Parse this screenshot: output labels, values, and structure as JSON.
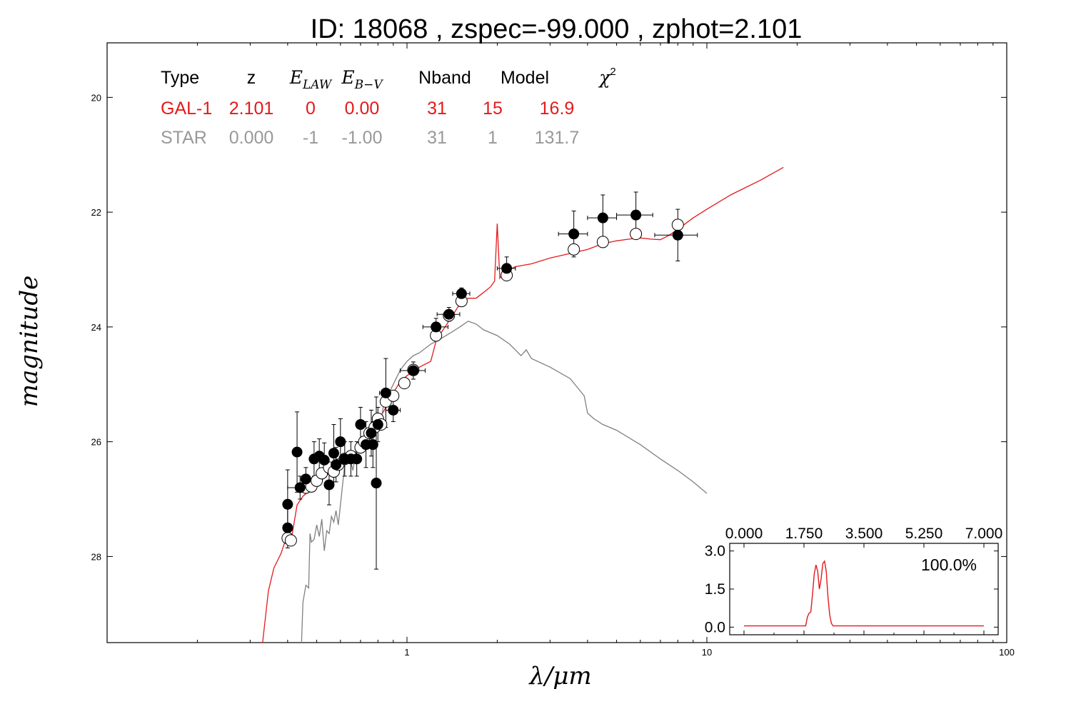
{
  "title": "ID:  18068 , zspec=-99.000 , zphot=2.101",
  "chart_data": [
    {
      "type": "scatter",
      "xlabel": "λ/μm",
      "ylabel": "magnitude",
      "xscale": "log",
      "xlim": [
        0.1,
        100
      ],
      "ylim": [
        29.5,
        19.05
      ],
      "y_inverted": true,
      "xticks": [
        "1",
        "10",
        "100"
      ],
      "yticks": [
        "20",
        "22",
        "24",
        "26",
        "28"
      ],
      "colors": {
        "galaxy": "#e31a1c",
        "star": "#808080",
        "observed": "#000000"
      },
      "table": {
        "headers": [
          "Type",
          "z",
          "E_LAW",
          "E_B−V",
          "Nband",
          "Model",
          "χ²"
        ],
        "rows": [
          {
            "color": "#e31a1c",
            "cells": [
              "GAL-1",
              "2.101",
              "0",
              "0.00",
              "31",
              "15",
              "16.9"
            ]
          },
          {
            "color": "#999999",
            "cells": [
              "STAR",
              "0.000",
              "-1",
              "-1.00",
              "31",
              "1",
              "131.7"
            ]
          }
        ]
      },
      "series": [
        {
          "kind": "line",
          "color": "#e31a1c",
          "points": [
            [
              0.33,
              29.5
            ],
            [
              0.345,
              28.6
            ],
            [
              0.36,
              28.2
            ],
            [
              0.38,
              27.95
            ],
            [
              0.4,
              27.6
            ],
            [
              0.41,
              27.75
            ],
            [
              0.43,
              27.1
            ],
            [
              0.45,
              26.95
            ],
            [
              0.5,
              26.75
            ],
            [
              0.55,
              26.55
            ],
            [
              0.6,
              26.4
            ],
            [
              0.65,
              26.25
            ],
            [
              0.7,
              26.1
            ],
            [
              0.75,
              25.9
            ],
            [
              0.8,
              25.65
            ],
            [
              0.85,
              25.4
            ],
            [
              0.9,
              25.15
            ],
            [
              0.95,
              24.95
            ],
            [
              1.0,
              24.85
            ],
            [
              1.1,
              24.7
            ],
            [
              1.2,
              24.6
            ],
            [
              1.25,
              24.25
            ],
            [
              1.3,
              24.1
            ],
            [
              1.4,
              23.85
            ],
            [
              1.5,
              23.6
            ],
            [
              1.6,
              23.5
            ],
            [
              1.7,
              23.5
            ],
            [
              1.8,
              23.4
            ],
            [
              1.9,
              23.3
            ],
            [
              1.96,
              23.2
            ],
            [
              2.0,
              22.2
            ],
            [
              2.04,
              23.15
            ],
            [
              2.1,
              23.05
            ],
            [
              2.3,
              22.95
            ],
            [
              2.6,
              22.9
            ],
            [
              3.0,
              22.8
            ],
            [
              3.5,
              22.72
            ],
            [
              4.0,
              22.65
            ],
            [
              4.5,
              22.55
            ],
            [
              5.0,
              22.5
            ],
            [
              5.5,
              22.47
            ],
            [
              6.0,
              22.45
            ],
            [
              6.5,
              22.47
            ],
            [
              7.0,
              22.48
            ],
            [
              7.5,
              22.4
            ],
            [
              8.0,
              22.3
            ],
            [
              9.0,
              22.1
            ],
            [
              10.0,
              21.95
            ],
            [
              12.0,
              21.7
            ],
            [
              15.0,
              21.45
            ],
            [
              18.0,
              21.22
            ]
          ]
        },
        {
          "kind": "line",
          "color": "#808080",
          "points": [
            [
              0.445,
              29.5
            ],
            [
              0.45,
              28.8
            ],
            [
              0.46,
              28.5
            ],
            [
              0.47,
              28.55
            ],
            [
              0.475,
              27.6
            ],
            [
              0.48,
              27.75
            ],
            [
              0.49,
              27.7
            ],
            [
              0.5,
              27.45
            ],
            [
              0.51,
              27.65
            ],
            [
              0.52,
              27.35
            ],
            [
              0.53,
              27.9
            ],
            [
              0.54,
              27.55
            ],
            [
              0.55,
              27.6
            ],
            [
              0.56,
              27.3
            ],
            [
              0.57,
              27.4
            ],
            [
              0.58,
              27.2
            ],
            [
              0.59,
              27.45
            ],
            [
              0.6,
              27.1
            ],
            [
              0.62,
              26.4
            ],
            [
              0.64,
              26.2
            ],
            [
              0.66,
              26.5
            ],
            [
              0.68,
              26.1
            ],
            [
              0.7,
              26.2
            ],
            [
              0.72,
              25.9
            ],
            [
              0.74,
              26.0
            ],
            [
              0.76,
              25.7
            ],
            [
              0.78,
              25.8
            ],
            [
              0.8,
              25.5
            ],
            [
              0.82,
              25.6
            ],
            [
              0.84,
              25.3
            ],
            [
              0.86,
              25.35
            ],
            [
              0.88,
              25.1
            ],
            [
              0.9,
              25.0
            ],
            [
              0.95,
              24.75
            ],
            [
              1.0,
              24.6
            ],
            [
              1.05,
              24.5
            ],
            [
              1.1,
              24.45
            ],
            [
              1.2,
              24.3
            ],
            [
              1.3,
              24.2
            ],
            [
              1.4,
              24.1
            ],
            [
              1.5,
              24.0
            ],
            [
              1.6,
              23.9
            ],
            [
              1.7,
              23.95
            ],
            [
              1.8,
              24.05
            ],
            [
              2.0,
              24.15
            ],
            [
              2.2,
              24.3
            ],
            [
              2.4,
              24.5
            ],
            [
              2.5,
              24.4
            ],
            [
              2.6,
              24.55
            ],
            [
              3.0,
              24.7
            ],
            [
              3.5,
              24.9
            ],
            [
              3.9,
              25.2
            ],
            [
              4.0,
              25.5
            ],
            [
              4.2,
              25.6
            ],
            [
              4.5,
              25.7
            ],
            [
              5.0,
              25.8
            ],
            [
              6.0,
              26.05
            ],
            [
              7.0,
              26.3
            ],
            [
              8.0,
              26.5
            ],
            [
              9.0,
              26.7
            ],
            [
              10.0,
              26.9
            ]
          ]
        },
        {
          "kind": "points_open",
          "color": "#000000",
          "points": [
            [
              0.4,
              27.68
            ],
            [
              0.41,
              27.72
            ],
            [
              0.46,
              26.8
            ],
            [
              0.48,
              26.78
            ],
            [
              0.5,
              26.68
            ],
            [
              0.52,
              26.55
            ],
            [
              0.55,
              26.45
            ],
            [
              0.57,
              26.52
            ],
            [
              0.59,
              26.4
            ],
            [
              0.62,
              26.3
            ],
            [
              0.65,
              26.25
            ],
            [
              0.7,
              26.1
            ],
            [
              0.72,
              26.0
            ],
            [
              0.75,
              25.85
            ],
            [
              0.78,
              25.75
            ],
            [
              0.8,
              25.6
            ],
            [
              0.82,
              25.7
            ],
            [
              0.85,
              25.3
            ],
            [
              0.9,
              25.2
            ],
            [
              0.98,
              24.98
            ],
            [
              1.05,
              24.75
            ],
            [
              1.25,
              24.15
            ],
            [
              1.38,
              23.8
            ],
            [
              1.52,
              23.55
            ],
            [
              2.15,
              23.1
            ],
            [
              3.6,
              22.65
            ],
            [
              4.5,
              22.52
            ],
            [
              5.8,
              22.38
            ],
            [
              8.0,
              22.22
            ]
          ]
        },
        {
          "kind": "points_filled_errorbars",
          "color": "#000000",
          "points": [
            {
              "x": 0.4,
              "y": 27.09,
              "dy": 0.6
            },
            {
              "x": 0.4,
              "y": 27.5,
              "dy": 0.35
            },
            {
              "x": 0.43,
              "y": 26.18,
              "dy": 0.7
            },
            {
              "x": 0.44,
              "y": 26.8,
              "dy": 0.2,
              "dx": 0.04
            },
            {
              "x": 0.46,
              "y": 26.65,
              "dy": 0.2
            },
            {
              "x": 0.49,
              "y": 26.3,
              "dy": 0.3
            },
            {
              "x": 0.51,
              "y": 26.25,
              "dy": 0.3
            },
            {
              "x": 0.53,
              "y": 26.32,
              "dy": 0.3
            },
            {
              "x": 0.55,
              "y": 26.75,
              "dy": 0.35
            },
            {
              "x": 0.57,
              "y": 26.2,
              "dy": 0.5
            },
            {
              "x": 0.58,
              "y": 26.4,
              "dy": 0.3
            },
            {
              "x": 0.6,
              "y": 26.0,
              "dy": 0.4
            },
            {
              "x": 0.62,
              "y": 26.3,
              "dy": 0.3
            },
            {
              "x": 0.65,
              "y": 26.3,
              "dy": 0.3
            },
            {
              "x": 0.68,
              "y": 26.3,
              "dy": 0.3
            },
            {
              "x": 0.7,
              "y": 25.7,
              "dy": 0.3
            },
            {
              "x": 0.73,
              "y": 26.05,
              "dy": 0.4
            },
            {
              "x": 0.76,
              "y": 25.85,
              "dy": 0.4
            },
            {
              "x": 0.77,
              "y": 26.05,
              "dy": 0.4
            },
            {
              "x": 0.79,
              "y": 26.72,
              "dy": 1.5
            },
            {
              "x": 0.8,
              "y": 25.7,
              "dy": 0.3
            },
            {
              "x": 0.85,
              "y": 25.15,
              "dy": 0.6,
              "dx": 0.04
            },
            {
              "x": 0.9,
              "y": 25.45,
              "dy": 0.2,
              "dx": 0.05
            },
            {
              "x": 1.05,
              "y": 24.76,
              "dy": 0.15,
              "dx": 0.1
            },
            {
              "x": 1.25,
              "y": 24.0,
              "dy": 0.15,
              "dx": 0.12
            },
            {
              "x": 1.38,
              "y": 23.78,
              "dy": 0.12,
              "dx": 0.12
            },
            {
              "x": 1.52,
              "y": 23.42,
              "dy": 0.1,
              "dx": 0.1
            },
            {
              "x": 2.15,
              "y": 22.98,
              "dy": 0.2,
              "dx": 0.15
            },
            {
              "x": 3.6,
              "y": 22.38,
              "dy": 0.4,
              "dx": 0.4
            },
            {
              "x": 4.5,
              "y": 22.1,
              "dy": 0.4,
              "dx": 0.5
            },
            {
              "x": 5.8,
              "y": 22.05,
              "dy": 0.4,
              "dx": 0.8
            },
            {
              "x": 8.0,
              "y": 22.4,
              "dy": 0.45,
              "dx": 1.3
            }
          ]
        }
      ]
    },
    {
      "type": "line",
      "role": "inset",
      "color": "#e31a1c",
      "xlim": [
        0,
        7
      ],
      "ylim": [
        -0.3,
        3.3
      ],
      "xticks": [
        "0.000",
        "1.750",
        "3.500",
        "5.250",
        "7.000"
      ],
      "yticks": [
        "0.0",
        "1.5",
        "3.0"
      ],
      "annotation": "100.0%",
      "points": [
        [
          0.0,
          0.05
        ],
        [
          1.8,
          0.05
        ],
        [
          1.85,
          0.4
        ],
        [
          1.9,
          0.55
        ],
        [
          1.95,
          0.6
        ],
        [
          2.0,
          1.3
        ],
        [
          2.05,
          2.1
        ],
        [
          2.1,
          2.45
        ],
        [
          2.15,
          2.2
        ],
        [
          2.2,
          1.5
        ],
        [
          2.25,
          1.9
        ],
        [
          2.3,
          2.5
        ],
        [
          2.35,
          2.6
        ],
        [
          2.4,
          2.2
        ],
        [
          2.45,
          1.2
        ],
        [
          2.5,
          0.5
        ],
        [
          2.55,
          0.15
        ],
        [
          2.6,
          0.05
        ],
        [
          7.0,
          0.05
        ]
      ]
    }
  ]
}
